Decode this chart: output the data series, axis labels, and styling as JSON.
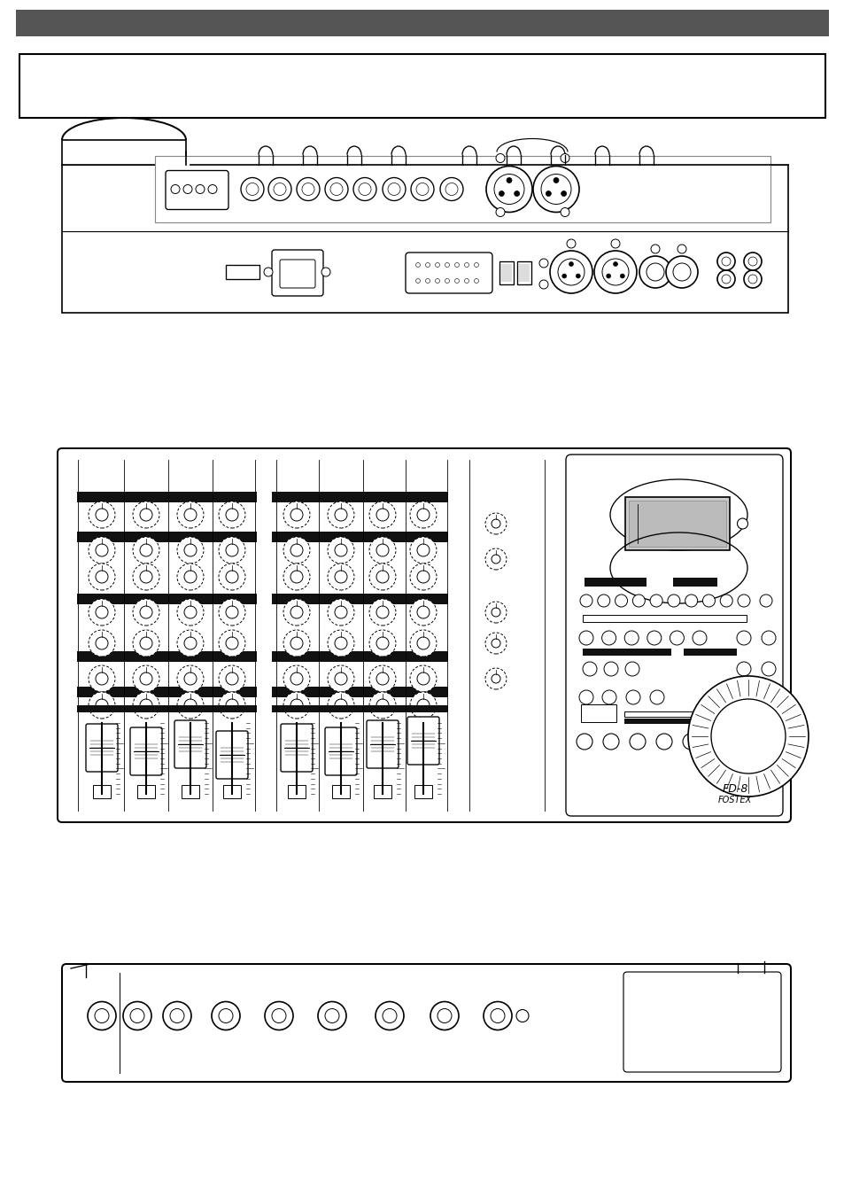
{
  "bg_color": "#ffffff",
  "header_color": "#555555",
  "lw": 1.2
}
